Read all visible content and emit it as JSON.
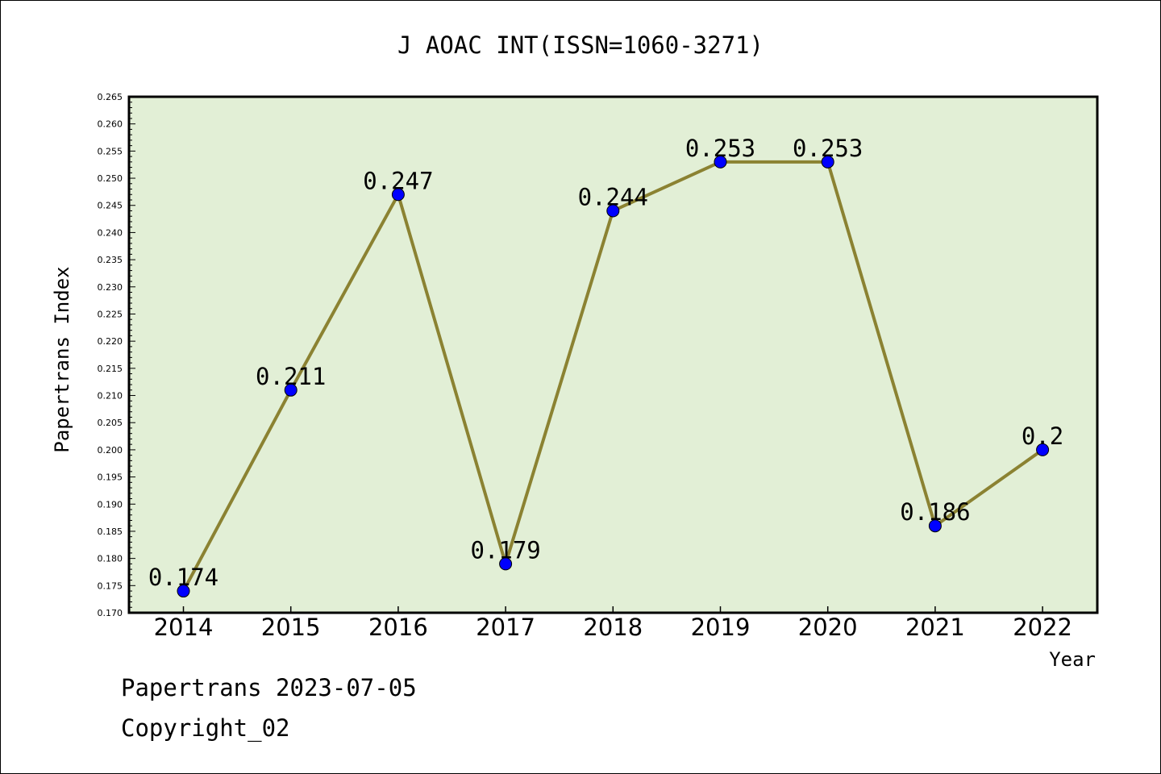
{
  "chart_data": {
    "type": "line",
    "title": "J AOAC INT(ISSN=1060-3271)",
    "xlabel": "Year",
    "ylabel": "Papertrans Index",
    "categories": [
      "2014",
      "2015",
      "2016",
      "2017",
      "2018",
      "2019",
      "2020",
      "2021",
      "2022"
    ],
    "values": [
      0.174,
      0.211,
      0.247,
      0.179,
      0.244,
      0.253,
      0.253,
      0.186,
      0.2
    ],
    "data_labels": [
      "0.174",
      "0.211",
      "0.247",
      "0.179",
      "0.244",
      "0.253",
      "0.253",
      "0.186",
      "0.2"
    ],
    "ylim": [
      0.17,
      0.265
    ],
    "yticks": [
      "0.170",
      "0.175",
      "0.180",
      "0.185",
      "0.190",
      "0.195",
      "0.200",
      "0.205",
      "0.210",
      "0.215",
      "0.220",
      "0.225",
      "0.230",
      "0.235",
      "0.240",
      "0.245",
      "0.250",
      "0.255",
      "0.260",
      "0.265"
    ],
    "grid": false,
    "legend": "none",
    "colors": {
      "plot_bg": "#e2efd6",
      "line": "#8b8232",
      "marker": "#0000ff",
      "axis": "#000000"
    }
  },
  "footer": {
    "line1": "Papertrans 2023-07-05",
    "line2": "Copyright_02"
  }
}
